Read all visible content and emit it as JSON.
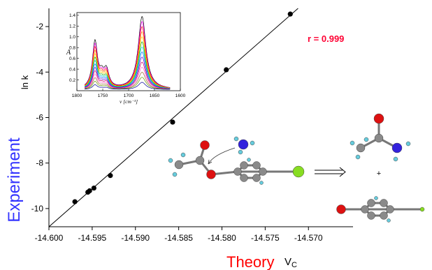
{
  "chart_data": {
    "type": "scatter",
    "title": "",
    "xlabel": "Theory",
    "xlabel_symbol": "VC",
    "xlabel_symbol_base": "V",
    "xlabel_symbol_sub": "C",
    "ylabel": "Experiment",
    "ylabel_symbol": "ln k",
    "annotation": "r = 0.999",
    "xlim": [
      -14.6,
      -14.568
    ],
    "ylim": [
      -10.8,
      -1.2
    ],
    "xticks": [
      -14.6,
      -14.595,
      -14.59,
      -14.585,
      -14.58,
      -14.575,
      -14.57
    ],
    "xtick_labels": [
      "-14.600",
      "-14.595",
      "-14.590",
      "-14.585",
      "-14.580",
      "-14.575",
      "-14.570"
    ],
    "yticks": [
      -2,
      -4,
      -6,
      -8,
      -10
    ],
    "ytick_labels": [
      "-2",
      "-4",
      "-6",
      "-8",
      "-10"
    ],
    "points": [
      {
        "x": -14.597,
        "y": -9.7
      },
      {
        "x": -14.5955,
        "y": -9.28
      },
      {
        "x": -14.5953,
        "y": -9.22
      },
      {
        "x": -14.5948,
        "y": -9.1
      },
      {
        "x": -14.5929,
        "y": -8.55
      },
      {
        "x": -14.5857,
        "y": -6.2
      },
      {
        "x": -14.5795,
        "y": -3.9
      },
      {
        "x": -14.5721,
        "y": -1.45
      }
    ],
    "fit_line": {
      "x": [
        -14.6,
        -14.5712
      ],
      "y": [
        -10.8,
        -1.2
      ]
    },
    "colors": {
      "annotation": "#ff0033",
      "ylabel": "#3333ff",
      "xlabel": "#ff0000",
      "marker": "#000000",
      "line": "#000000"
    },
    "grid": false,
    "legend": "none",
    "inset": {
      "type": "line",
      "ylabel": "A",
      "xlabel": "ν [cm⁻¹]",
      "xlim": [
        1800,
        1600
      ],
      "ylim": [
        0,
        1.45
      ],
      "xticks": [
        1800,
        1750,
        1700,
        1650,
        1600
      ],
      "xtick_labels": [
        "1800",
        "1750",
        "1700",
        "1650",
        "1600"
      ],
      "yticks": [
        0.2,
        0.4,
        0.6,
        0.8,
        1.0,
        1.2,
        1.4
      ],
      "ytick_labels": [
        "0.2",
        "0.4",
        "0.6",
        "0.8",
        "1.0",
        "1.2",
        "1.4"
      ],
      "series_count": 14,
      "peaks": [
        {
          "x": 1765,
          "ymax": 0.87
        },
        {
          "x": 1743,
          "ymax": 0.32
        },
        {
          "x": 1674,
          "ymax": 1.35
        }
      ],
      "series_colors": [
        "#000000",
        "#ff00ff",
        "#ff0000",
        "#ff8800",
        "#ffcc00",
        "#00aa00",
        "#00cccc",
        "#0066ff",
        "#6600cc",
        "#cc0066",
        "#ff66cc",
        "#996633",
        "#669900",
        "#000099"
      ]
    },
    "reaction": {
      "operator": "+",
      "arrow": "⟹",
      "atom_colors": {
        "carbon": "#8a8a8a",
        "oxygen": "#dd1111",
        "nitrogen": "#3322dd",
        "hydrogen": "#66ccdd",
        "chlorine": "#88dd22"
      }
    }
  }
}
